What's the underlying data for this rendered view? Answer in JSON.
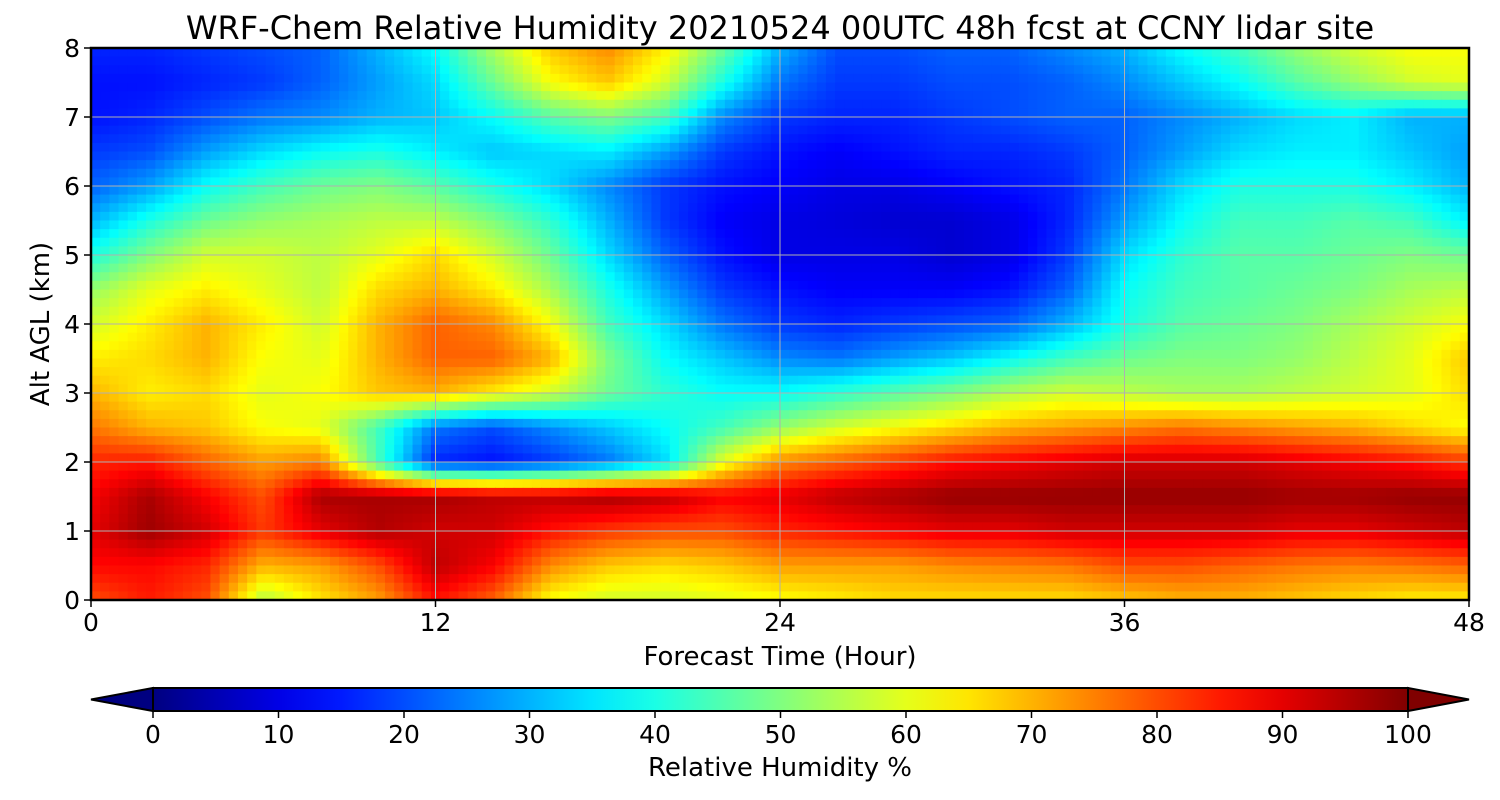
{
  "chart_data": {
    "type": "heatmap",
    "title": "WRF-Chem Relative Humidity 20210524 00UTC 48h fcst at CCNY lidar site",
    "xlabel": "Forecast Time (Hour)",
    "ylabel": "Alt AGL (km)",
    "xlim": [
      0,
      48
    ],
    "ylim": [
      0,
      8
    ],
    "xticks": [
      0,
      12,
      24,
      36,
      48
    ],
    "yticks": [
      0,
      1,
      2,
      3,
      4,
      5,
      6,
      7,
      8
    ],
    "grid": true,
    "colormap": "jet",
    "colorbar": {
      "label": "Relative Humidity %",
      "ticks": [
        0,
        10,
        20,
        30,
        40,
        50,
        60,
        70,
        80,
        90,
        100
      ],
      "range": [
        0,
        100
      ],
      "orientation": "horizontal",
      "extend": "both"
    },
    "x": [
      0,
      2,
      4,
      6,
      8,
      10,
      12,
      14,
      16,
      18,
      20,
      22,
      24,
      26,
      28,
      30,
      32,
      34,
      36,
      38,
      40,
      42,
      44,
      46,
      48
    ],
    "y": [
      0,
      0.5,
      1,
      1.5,
      2,
      2.5,
      3,
      3.5,
      4,
      4.5,
      5,
      5.5,
      6,
      6.5,
      7,
      7.5,
      8
    ],
    "values": [
      [
        80,
        85,
        80,
        55,
        65,
        72,
        86,
        78,
        62,
        58,
        58,
        60,
        62,
        64,
        66,
        66,
        66,
        66,
        68,
        70,
        70,
        68,
        66,
        64,
        64
      ],
      [
        87,
        87,
        84,
        70,
        72,
        80,
        94,
        88,
        74,
        68,
        66,
        68,
        72,
        72,
        72,
        74,
        75,
        76,
        80,
        80,
        78,
        76,
        75,
        76,
        78
      ],
      [
        90,
        97,
        92,
        82,
        90,
        95,
        92,
        92,
        86,
        82,
        80,
        80,
        84,
        86,
        88,
        90,
        90,
        92,
        92,
        92,
        92,
        90,
        90,
        92,
        94
      ],
      [
        88,
        96,
        88,
        80,
        96,
        96,
        96,
        94,
        94,
        96,
        94,
        88,
        90,
        94,
        96,
        98,
        98,
        98,
        98,
        98,
        98,
        97,
        97,
        98,
        98
      ],
      [
        84,
        85,
        78,
        72,
        75,
        44,
        16,
        14,
        18,
        24,
        34,
        60,
        74,
        78,
        82,
        86,
        88,
        90,
        92,
        92,
        92,
        90,
        88,
        86,
        82
      ],
      [
        76,
        70,
        68,
        62,
        60,
        44,
        24,
        20,
        26,
        32,
        38,
        44,
        52,
        58,
        62,
        66,
        70,
        72,
        74,
        76,
        74,
        72,
        70,
        66,
        62
      ],
      [
        70,
        64,
        66,
        60,
        62,
        68,
        70,
        64,
        58,
        48,
        42,
        38,
        38,
        42,
        46,
        50,
        55,
        58,
        56,
        54,
        54,
        56,
        58,
        60,
        66
      ],
      [
        64,
        66,
        70,
        62,
        60,
        70,
        78,
        78,
        70,
        50,
        38,
        32,
        26,
        24,
        28,
        32,
        38,
        44,
        48,
        50,
        50,
        52,
        56,
        60,
        68
      ],
      [
        58,
        64,
        70,
        64,
        58,
        70,
        78,
        74,
        62,
        44,
        34,
        24,
        18,
        16,
        18,
        20,
        22,
        30,
        40,
        46,
        48,
        50,
        54,
        58,
        62
      ],
      [
        52,
        60,
        64,
        60,
        56,
        66,
        70,
        64,
        54,
        40,
        28,
        18,
        14,
        12,
        12,
        12,
        14,
        22,
        38,
        44,
        46,
        48,
        50,
        54,
        56
      ],
      [
        40,
        50,
        58,
        58,
        56,
        60,
        66,
        58,
        48,
        34,
        22,
        14,
        10,
        10,
        10,
        8,
        10,
        18,
        34,
        42,
        46,
        46,
        48,
        50,
        48
      ],
      [
        30,
        40,
        48,
        52,
        54,
        56,
        56,
        50,
        42,
        30,
        18,
        12,
        10,
        9,
        8,
        8,
        10,
        16,
        28,
        38,
        44,
        44,
        46,
        44,
        36
      ],
      [
        22,
        28,
        38,
        44,
        48,
        50,
        46,
        40,
        34,
        26,
        18,
        14,
        12,
        10,
        10,
        12,
        14,
        16,
        24,
        34,
        40,
        40,
        40,
        36,
        30
      ],
      [
        18,
        20,
        28,
        34,
        38,
        40,
        36,
        32,
        34,
        36,
        28,
        18,
        14,
        12,
        14,
        16,
        16,
        18,
        22,
        28,
        34,
        36,
        36,
        32,
        28
      ],
      [
        14,
        16,
        20,
        24,
        26,
        30,
        32,
        38,
        46,
        50,
        44,
        26,
        18,
        16,
        16,
        18,
        20,
        22,
        22,
        26,
        30,
        34,
        36,
        30,
        30
      ],
      [
        14,
        14,
        16,
        18,
        22,
        28,
        34,
        48,
        62,
        68,
        58,
        40,
        24,
        18,
        18,
        20,
        20,
        22,
        26,
        32,
        38,
        46,
        52,
        58,
        60
      ],
      [
        16,
        16,
        18,
        20,
        22,
        30,
        38,
        54,
        68,
        74,
        64,
        48,
        30,
        20,
        20,
        22,
        22,
        26,
        30,
        38,
        44,
        52,
        58,
        62,
        62
      ]
    ]
  }
}
